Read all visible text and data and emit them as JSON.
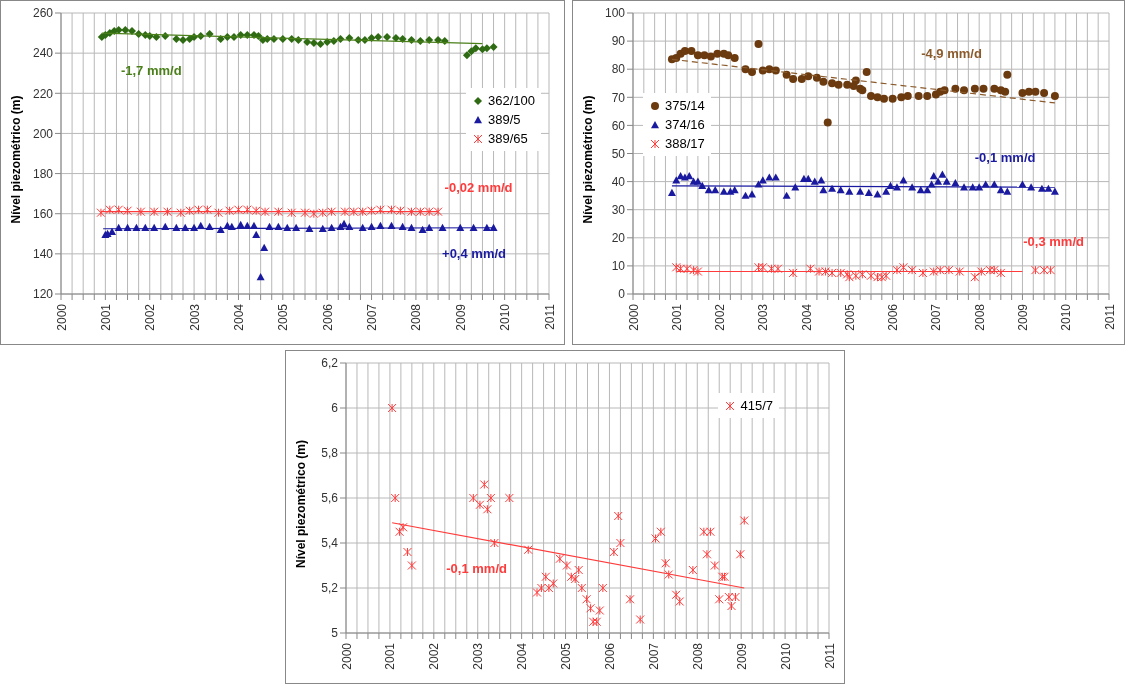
{
  "chart_data": [
    {
      "type": "scatter",
      "ylabel": "Nível piezométrico (m)",
      "xlim": [
        2000,
        2011
      ],
      "ylim": [
        120,
        260
      ],
      "yticks": [
        120,
        140,
        160,
        180,
        200,
        220,
        240,
        260
      ],
      "xticks": [
        2000,
        {
          "value": 2000.25,
          "label": null
        },
        {
          "value": 2000.5,
          "label": null
        },
        {
          "value": 2000.75,
          "label": null
        },
        2001,
        {
          "value": 2001.25,
          "label": null
        },
        {
          "value": 2001.5,
          "label": null
        },
        {
          "value": 2001.75,
          "label": null
        },
        2002,
        {
          "value": 2002.25,
          "label": null
        },
        {
          "value": 2002.5,
          "label": null
        },
        {
          "value": 2002.75,
          "label": null
        },
        2003,
        {
          "value": 2003.25,
          "label": null
        },
        {
          "value": 2003.5,
          "label": null
        },
        {
          "value": 2003.75,
          "label": null
        },
        2004,
        {
          "value": 2004.25,
          "label": null
        },
        {
          "value": 2004.5,
          "label": null
        },
        {
          "value": 2004.75,
          "label": null
        },
        2005,
        {
          "value": 2005.25,
          "label": null
        },
        {
          "value": 2005.5,
          "label": null
        },
        {
          "value": 2005.75,
          "label": null
        },
        2006,
        {
          "value": 2006.25,
          "label": null
        },
        {
          "value": 2006.5,
          "label": null
        },
        {
          "value": 2006.75,
          "label": null
        },
        2007,
        {
          "value": 2007.25,
          "label": null
        },
        {
          "value": 2007.5,
          "label": null
        },
        {
          "value": 2007.75,
          "label": null
        },
        2008,
        {
          "value": 2008.25,
          "label": null
        },
        {
          "value": 2008.5,
          "label": null
        },
        {
          "value": 2008.75,
          "label": null
        },
        2009,
        {
          "value": 2009.25,
          "label": null
        },
        {
          "value": 2009.5,
          "label": null
        },
        {
          "value": 2009.75,
          "label": null
        },
        2010,
        {
          "value": 2010.25,
          "label": null
        },
        {
          "value": 2010.5,
          "label": null
        },
        {
          "value": 2010.75,
          "label": null
        },
        2011
      ],
      "grid": true,
      "legend": "right",
      "series": [
        {
          "name": "362/100",
          "color": "#2e6b12",
          "marker": "diamond",
          "x": [
            2000.92,
            2001.0,
            2001.1,
            2001.2,
            2001.3,
            2001.45,
            2001.6,
            2001.75,
            2001.9,
            2002.0,
            2002.15,
            2002.35,
            2002.6,
            2002.75,
            2002.9,
            2003.0,
            2003.15,
            2003.35,
            2003.6,
            2003.75,
            2003.9,
            2004.05,
            2004.2,
            2004.35,
            2004.45,
            2004.55,
            2004.65,
            2004.8,
            2005.0,
            2005.2,
            2005.35,
            2005.55,
            2005.7,
            2005.85,
            2006.0,
            2006.15,
            2006.3,
            2006.5,
            2006.7,
            2006.85,
            2007.0,
            2007.15,
            2007.35,
            2007.55,
            2007.7,
            2007.9,
            2008.1,
            2008.3,
            2008.5,
            2008.65,
            2009.15,
            2009.25,
            2009.35,
            2009.5,
            2009.6,
            2009.75
          ],
          "values": [
            248,
            249,
            250,
            251,
            251.5,
            251.5,
            251,
            249.5,
            249,
            248.5,
            248,
            248.5,
            247,
            246.5,
            247,
            248,
            248.5,
            249.5,
            247,
            248,
            248,
            249,
            249,
            249,
            248.5,
            246.5,
            247,
            247,
            247,
            247,
            246.5,
            245.5,
            245,
            244.5,
            245.5,
            246,
            247,
            247.5,
            246.5,
            246.5,
            247.5,
            248,
            248,
            247.5,
            247,
            246.5,
            246,
            246.5,
            246.5,
            246,
            239,
            241,
            242.5,
            242,
            242.5,
            243
          ]
        },
        {
          "name": "389/5",
          "color": "#1a1aa0",
          "marker": "triangle",
          "x": [
            2001.0,
            2001.05,
            2001.15,
            2001.3,
            2001.5,
            2001.7,
            2001.9,
            2002.1,
            2002.35,
            2002.6,
            2002.8,
            2003.0,
            2003.15,
            2003.35,
            2003.6,
            2003.75,
            2003.85,
            2004.05,
            2004.2,
            2004.35,
            2004.4,
            2004.5,
            2004.58,
            2004.7,
            2004.9,
            2005.1,
            2005.3,
            2005.6,
            2005.9,
            2006.1,
            2006.3,
            2006.38,
            2006.5,
            2006.8,
            2007.0,
            2007.2,
            2007.45,
            2007.7,
            2007.9,
            2008.15,
            2008.3,
            2008.6,
            2009.0,
            2009.3,
            2009.6,
            2009.75
          ],
          "values": [
            149.5,
            150,
            151,
            153,
            153,
            153,
            153,
            153,
            153.5,
            153,
            153,
            153,
            154,
            153.5,
            152,
            154,
            153.5,
            154.5,
            154,
            154,
            149.5,
            128.5,
            143,
            153.5,
            153.5,
            153,
            153,
            152.5,
            152.5,
            153,
            153.5,
            155,
            153.5,
            153,
            153.5,
            154,
            154,
            153.5,
            153,
            152,
            153,
            153,
            153,
            153,
            153,
            153
          ]
        },
        {
          "name": "389/65",
          "color": "#ff3b3b",
          "marker": "cross",
          "x": [
            2000.9,
            2001.1,
            2001.3,
            2001.5,
            2001.8,
            2002.1,
            2002.4,
            2002.7,
            2002.9,
            2003.1,
            2003.3,
            2003.55,
            2003.8,
            2004.0,
            2004.2,
            2004.4,
            2004.6,
            2004.9,
            2005.2,
            2005.5,
            2005.7,
            2005.9,
            2006.1,
            2006.4,
            2006.6,
            2006.8,
            2007.0,
            2007.2,
            2007.45,
            2007.65,
            2007.9,
            2008.1,
            2008.3,
            2008.5
          ],
          "values": [
            160.5,
            162,
            162,
            161.5,
            161,
            161,
            161,
            160.5,
            161.5,
            162,
            162,
            160.5,
            161.5,
            162,
            162,
            161.5,
            161,
            161,
            160.5,
            160.5,
            160,
            160.5,
            161,
            161,
            161,
            161,
            161.5,
            162,
            162,
            161.5,
            161,
            161,
            161,
            161
          ]
        },
        {
          "type": "line",
          "color": "#4a7f1a",
          "x": [
            2000.92,
            2009.5
          ],
          "values": [
            250,
            244.7
          ]
        },
        {
          "type": "line",
          "color": "#1a1aa0",
          "x": [
            2000.95,
            2009.75
          ],
          "values": [
            152.5,
            153
          ]
        },
        {
          "type": "line",
          "color": "#ff3b3b",
          "x": [
            2000.9,
            2008.5
          ],
          "values": [
            161,
            161
          ]
        }
      ],
      "annotations": [
        "-1,7 mm/d",
        "+0,4 mm/d",
        "-0,02 mm/d"
      ]
    },
    {
      "type": "scatter",
      "ylabel": "Nível piezométrico (m)",
      "xlim": [
        2000,
        2011
      ],
      "ylim": [
        0,
        100
      ],
      "yticks": [
        0,
        10,
        20,
        30,
        40,
        50,
        60,
        70,
        80,
        90,
        100
      ],
      "xticks": [
        2000,
        {
          "value": 2000.25,
          "label": null
        },
        {
          "value": 2000.5,
          "label": null
        },
        {
          "value": 2000.75,
          "label": null
        },
        2001,
        {
          "value": 2001.25,
          "label": null
        },
        {
          "value": 2001.5,
          "label": null
        },
        {
          "value": 2001.75,
          "label": null
        },
        2002,
        {
          "value": 2002.25,
          "label": null
        },
        {
          "value": 2002.5,
          "label": null
        },
        {
          "value": 2002.75,
          "label": null
        },
        2003,
        {
          "value": 2003.25,
          "label": null
        },
        {
          "value": 2003.5,
          "label": null
        },
        {
          "value": 2003.75,
          "label": null
        },
        2004,
        {
          "value": 2004.25,
          "label": null
        },
        {
          "value": 2004.5,
          "label": null
        },
        {
          "value": 2004.75,
          "label": null
        },
        2005,
        {
          "value": 2005.25,
          "label": null
        },
        {
          "value": 2005.5,
          "label": null
        },
        {
          "value": 2005.75,
          "label": null
        },
        2006,
        {
          "value": 2006.25,
          "label": null
        },
        {
          "value": 2006.5,
          "label": null
        },
        {
          "value": 2006.75,
          "label": null
        },
        2007,
        {
          "value": 2007.25,
          "label": null
        },
        {
          "value": 2007.5,
          "label": null
        },
        {
          "value": 2007.75,
          "label": null
        },
        2008,
        {
          "value": 2008.25,
          "label": null
        },
        {
          "value": 2008.5,
          "label": null
        },
        {
          "value": 2008.75,
          "label": null
        },
        2009,
        {
          "value": 2009.25,
          "label": null
        },
        {
          "value": 2009.5,
          "label": null
        },
        {
          "value": 2009.75,
          "label": null
        },
        2010,
        {
          "value": 2010.25,
          "label": null
        },
        {
          "value": 2010.5,
          "label": null
        },
        {
          "value": 2010.75,
          "label": null
        },
        2011
      ],
      "grid": true,
      "legend": "left",
      "series": [
        {
          "name": "375/14",
          "color": "#6b3a0e",
          "marker": "circle",
          "x": [
            2000.9,
            2001.0,
            2001.1,
            2001.2,
            2001.35,
            2001.5,
            2001.65,
            2001.8,
            2001.95,
            2002.1,
            2002.2,
            2002.35,
            2002.6,
            2002.75,
            2002.9,
            2003.0,
            2003.15,
            2003.3,
            2003.55,
            2003.7,
            2003.9,
            2004.05,
            2004.25,
            2004.4,
            2004.5,
            2004.6,
            2004.75,
            2004.95,
            2005.1,
            2005.15,
            2005.25,
            2005.3,
            2005.4,
            2005.5,
            2005.65,
            2005.8,
            2006.0,
            2006.2,
            2006.35,
            2006.6,
            2006.8,
            2007.0,
            2007.1,
            2007.2,
            2007.45,
            2007.65,
            2007.9,
            2008.1,
            2008.35,
            2008.5,
            2008.6,
            2008.65,
            2009.0,
            2009.15,
            2009.3,
            2009.5,
            2009.75
          ],
          "values": [
            83.5,
            84,
            85.5,
            86.5,
            86.5,
            85,
            85,
            84.5,
            85.5,
            85.5,
            85,
            84,
            80,
            79,
            89,
            79.5,
            80,
            79.5,
            78,
            76.5,
            76.5,
            77.5,
            77,
            75.5,
            61,
            75,
            74.5,
            74.5,
            74,
            76,
            73,
            72.5,
            79,
            70.5,
            70,
            69.5,
            69.5,
            70,
            70.5,
            70.5,
            70.5,
            71,
            72,
            72.5,
            73,
            72.5,
            73,
            73,
            73,
            72.5,
            72,
            78,
            71.5,
            72,
            72,
            71.5,
            70.5
          ]
        },
        {
          "name": "374/16",
          "color": "#1a1aa0",
          "marker": "triangle",
          "x": [
            2000.9,
            2001.0,
            2001.1,
            2001.2,
            2001.3,
            2001.4,
            2001.5,
            2001.6,
            2001.75,
            2001.9,
            2002.1,
            2002.25,
            2002.35,
            2002.6,
            2002.75,
            2002.9,
            2003.0,
            2003.15,
            2003.3,
            2003.55,
            2003.75,
            2003.95,
            2004.05,
            2004.2,
            2004.35,
            2004.4,
            2004.6,
            2004.8,
            2005.0,
            2005.25,
            2005.45,
            2005.65,
            2005.85,
            2005.95,
            2006.1,
            2006.25,
            2006.45,
            2006.65,
            2006.8,
            2006.9,
            2006.95,
            2007.05,
            2007.15,
            2007.25,
            2007.45,
            2007.65,
            2007.85,
            2008.0,
            2008.15,
            2008.35,
            2008.5,
            2008.65,
            2009.0,
            2009.2,
            2009.45,
            2009.6,
            2009.75
          ],
          "values": [
            36,
            40.5,
            42,
            41.5,
            42,
            40,
            40,
            38.5,
            37,
            37,
            36.5,
            36.5,
            37,
            35,
            35.5,
            39,
            40.5,
            41.5,
            41.5,
            35,
            38,
            41,
            41,
            40,
            40.5,
            37,
            37.5,
            37,
            36.5,
            36.5,
            36,
            35.5,
            36.5,
            38.5,
            38,
            40.5,
            38,
            37,
            37,
            39,
            42,
            40,
            42.5,
            40,
            39.5,
            38,
            38,
            38,
            39,
            39,
            37,
            36.5,
            39,
            38,
            37.5,
            37.5,
            36.5
          ]
        },
        {
          "name": "388/17",
          "color": "#ff3b3b",
          "marker": "cross",
          "x": [
            2001.0,
            2001.1,
            2001.25,
            2001.4,
            2001.5,
            2002.9,
            2003.0,
            2003.2,
            2003.35,
            2003.7,
            2004.1,
            2004.3,
            2004.45,
            2004.6,
            2004.8,
            2004.95,
            2005.0,
            2005.15,
            2005.3,
            2005.5,
            2005.65,
            2005.75,
            2005.85,
            2006.1,
            2006.25,
            2006.45,
            2006.7,
            2006.95,
            2007.1,
            2007.3,
            2007.55,
            2007.9,
            2008.05,
            2008.25,
            2008.35,
            2008.5,
            2009.3,
            2009.5,
            2009.65
          ],
          "values": [
            9.5,
            9,
            9,
            8.5,
            8,
            9.5,
            9.5,
            9,
            9,
            7.5,
            9,
            8,
            8,
            7.5,
            7.5,
            7,
            6,
            6.5,
            7,
            6.5,
            6,
            6,
            6.5,
            8.5,
            9.5,
            8.5,
            7.5,
            8,
            8.5,
            8.5,
            8,
            6,
            8,
            8.5,
            8.5,
            7.5,
            8.5,
            8.5,
            8.5
          ]
        },
        {
          "type": "line",
          "color": "#8b5a2b",
          "line_style": "dashed",
          "x": [
            2000.9,
            2009.75
          ],
          "values": [
            83.5,
            68
          ]
        },
        {
          "type": "line",
          "color": "#1a1aa0",
          "x": [
            2000.9,
            2009.75
          ],
          "values": [
            38.5,
            38
          ]
        },
        {
          "type": "line",
          "color": "#ff3b3b",
          "x": [
            2001.0,
            2009.0
          ],
          "values": [
            8,
            8
          ]
        }
      ],
      "annotations": [
        "-4,9 mm/d",
        "-0,1 mm/d",
        "-0,3 mm/d"
      ]
    },
    {
      "type": "scatter",
      "ylabel": "Nível piezométrico (m)",
      "xlim": [
        2000,
        2011
      ],
      "ylim": [
        5,
        6.2
      ],
      "yticks": [
        5,
        {
          "value": 5.2,
          "label": "5,2"
        },
        {
          "value": 5.4,
          "label": "5,4"
        },
        {
          "value": 5.6,
          "label": "5,6"
        },
        {
          "value": 5.8,
          "label": "5,8"
        },
        6,
        {
          "value": 6.2,
          "label": "6,2"
        }
      ],
      "xticks": [
        2000,
        {
          "value": 2000.25,
          "label": null
        },
        {
          "value": 2000.5,
          "label": null
        },
        {
          "value": 2000.75,
          "label": null
        },
        2001,
        {
          "value": 2001.25,
          "label": null
        },
        {
          "value": 2001.5,
          "label": null
        },
        {
          "value": 2001.75,
          "label": null
        },
        2002,
        {
          "value": 2002.25,
          "label": null
        },
        {
          "value": 2002.5,
          "label": null
        },
        {
          "value": 2002.75,
          "label": null
        },
        2003,
        {
          "value": 2003.25,
          "label": null
        },
        {
          "value": 2003.5,
          "label": null
        },
        {
          "value": 2003.75,
          "label": null
        },
        2004,
        {
          "value": 2004.25,
          "label": null
        },
        {
          "value": 2004.5,
          "label": null
        },
        {
          "value": 2004.75,
          "label": null
        },
        2005,
        {
          "value": 2005.25,
          "label": null
        },
        {
          "value": 2005.5,
          "label": null
        },
        {
          "value": 2005.75,
          "label": null
        },
        2006,
        {
          "value": 2006.25,
          "label": null
        },
        {
          "value": 2006.5,
          "label": null
        },
        {
          "value": 2006.75,
          "label": null
        },
        2007,
        {
          "value": 2007.25,
          "label": null
        },
        {
          "value": 2007.5,
          "label": null
        },
        {
          "value": 2007.75,
          "label": null
        },
        2008,
        {
          "value": 2008.25,
          "label": null
        },
        {
          "value": 2008.5,
          "label": null
        },
        {
          "value": 2008.75,
          "label": null
        },
        2009,
        {
          "value": 2009.25,
          "label": null
        },
        {
          "value": 2009.5,
          "label": null
        },
        {
          "value": 2009.75,
          "label": null
        },
        2010,
        {
          "value": 2010.25,
          "label": null
        },
        {
          "value": 2010.5,
          "label": null
        },
        {
          "value": 2010.75,
          "label": null
        },
        2011
      ],
      "grid": true,
      "legend": "top right",
      "series": [
        {
          "name": "415/7",
          "color": "#ff3b3b",
          "marker": "cross",
          "x": [
            2001.05,
            2001.12,
            2001.22,
            2001.3,
            2001.4,
            2001.5,
            2002.9,
            2003.05,
            2003.15,
            2003.22,
            2003.3,
            2003.38,
            2003.72,
            2004.15,
            2004.35,
            2004.45,
            2004.55,
            2004.62,
            2004.72,
            2004.87,
            2005.03,
            2005.13,
            2005.22,
            2005.3,
            2005.37,
            2005.48,
            2005.57,
            2005.63,
            2005.71,
            2005.78,
            2005.85,
            2006.1,
            2006.2,
            2006.25,
            2006.47,
            2006.7,
            2007.05,
            2007.17,
            2007.28,
            2007.35,
            2007.52,
            2007.6,
            2007.9,
            2008.15,
            2008.22,
            2008.3,
            2008.4,
            2008.5,
            2008.57,
            2008.62,
            2008.72,
            2008.78,
            2008.87,
            2008.98,
            2009.07
          ],
          "values": [
            6.0,
            5.6,
            5.45,
            5.47,
            5.36,
            5.3,
            5.6,
            5.57,
            5.66,
            5.55,
            5.6,
            5.4,
            5.6,
            5.37,
            5.18,
            5.2,
            5.25,
            5.2,
            5.22,
            5.33,
            5.3,
            5.25,
            5.24,
            5.28,
            5.2,
            5.15,
            5.11,
            5.05,
            5.05,
            5.1,
            5.2,
            5.36,
            5.52,
            5.4,
            5.15,
            5.06,
            5.42,
            5.45,
            5.31,
            5.26,
            5.17,
            5.14,
            5.28,
            5.45,
            5.35,
            5.45,
            5.3,
            5.15,
            5.25,
            5.25,
            5.16,
            5.12,
            5.16,
            5.35,
            5.5
          ]
        },
        {
          "type": "line",
          "color": "#ff3b3b",
          "x": [
            2001.05,
            2009.07
          ],
          "values": [
            5.49,
            5.2
          ]
        }
      ],
      "annotations": [
        "-0,1 mm/d"
      ]
    }
  ]
}
